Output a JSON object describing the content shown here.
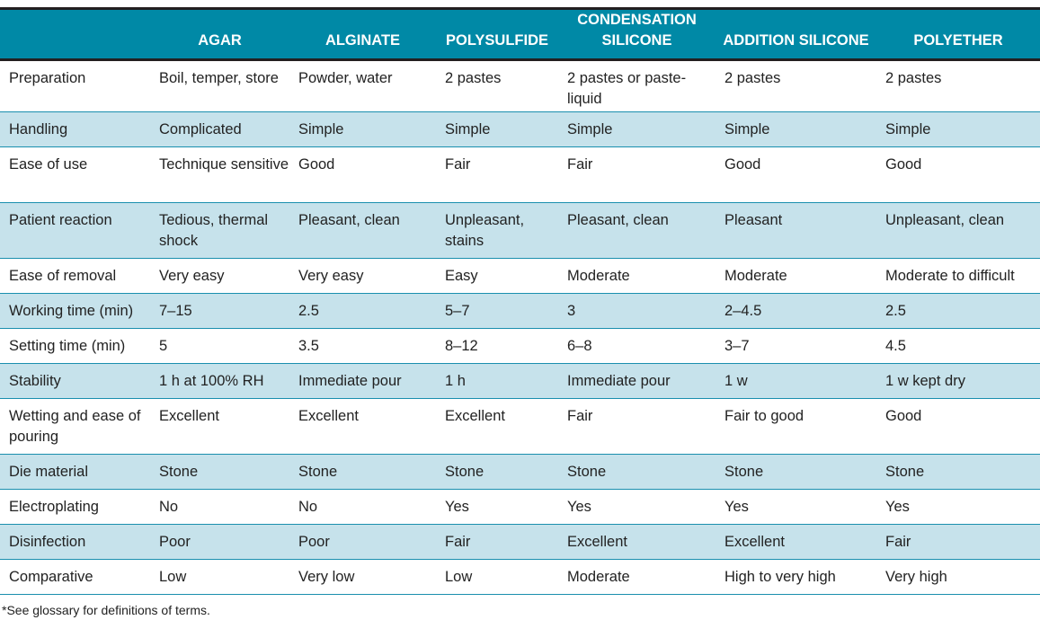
{
  "headers": [
    "",
    "AGAR",
    "ALGINATE",
    "POLYSULFIDE",
    "CONDENSATION SILICONE",
    "ADDITION SILICONE",
    "POLYETHER"
  ],
  "rows": [
    [
      "Preparation",
      "Boil, temper, store",
      "Powder, water",
      "2 pastes",
      "2 pastes or paste-liquid",
      "2 pastes",
      "2 pastes"
    ],
    [
      "Handling",
      "Complicated",
      "Simple",
      "Simple",
      "Simple",
      "Simple",
      "Simple"
    ],
    [
      "Ease of use",
      "Technique sensitive",
      "Good",
      "Fair",
      "Fair",
      "Good",
      "Good"
    ],
    [
      "Patient reaction",
      "Tedious, thermal shock",
      "Pleasant, clean",
      "Unpleasant, stains",
      "Pleasant, clean",
      "Pleasant",
      "Unpleasant, clean"
    ],
    [
      "Ease of removal",
      "Very easy",
      "Very easy",
      "Easy",
      "Moderate",
      "Moderate",
      "Moderate to difficult"
    ],
    [
      "Working time (min)",
      "7–15",
      "2.5",
      "5–7",
      "3",
      "2–4.5",
      "2.5"
    ],
    [
      "Setting time (min)",
      "5",
      "3.5",
      "8–12",
      "6–8",
      "3–7",
      "4.5"
    ],
    [
      "Stability",
      "1 h at 100% RH",
      "Immediate pour",
      "1 h",
      "Immediate pour",
      "1 w",
      "1 w kept dry"
    ],
    [
      "Wetting and ease of pouring",
      "Excellent",
      "Excellent",
      "Excellent",
      "Fair",
      "Fair to good",
      "Good"
    ],
    [
      "Die material",
      "Stone",
      "Stone",
      "Stone",
      "Stone",
      "Stone",
      "Stone"
    ],
    [
      "Electroplating",
      "No",
      "No",
      "Yes",
      "Yes",
      "Yes",
      "Yes"
    ],
    [
      "Disinfection",
      "Poor",
      "Poor",
      "Fair",
      "Excellent",
      "Excellent",
      "Fair"
    ],
    [
      "Comparative",
      "Low",
      "Very low",
      "Low",
      "Moderate",
      "High to very high",
      "Very high"
    ]
  ],
  "footnote": "*See glossary for definitions of terms."
}
